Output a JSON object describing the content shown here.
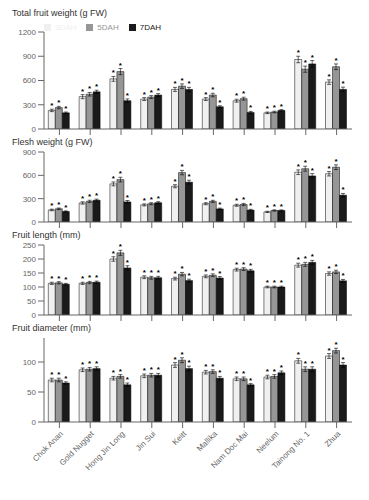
{
  "chart_data": [
    {
      "type": "bar",
      "ylabel": "Total fruit weight (g FW)",
      "categories": [
        "Chok Anan",
        "Gold Nugget",
        "Hong Jin Long",
        "Jin Sui",
        "Keitt",
        "Mallika",
        "Nam Doc Mai",
        "Neelum",
        "Tainong No. 1",
        "Zhua"
      ],
      "series": [
        {
          "name": "3DAH",
          "color": "#f0f0f0",
          "values": [
            230,
            400,
            620,
            370,
            490,
            370,
            350,
            200,
            860,
            580
          ],
          "errors": [
            15,
            25,
            30,
            18,
            25,
            18,
            18,
            10,
            40,
            28
          ],
          "annotations": [
            "*",
            "*",
            "*",
            "*",
            "*",
            "*",
            "*",
            "*",
            "*",
            "*"
          ]
        },
        {
          "name": "5DAH",
          "color": "#969696",
          "values": [
            265,
            430,
            710,
            395,
            530,
            420,
            375,
            210,
            740,
            770
          ],
          "errors": [
            15,
            22,
            38,
            18,
            28,
            22,
            18,
            10,
            38,
            35
          ],
          "annotations": [
            "*",
            "*",
            "*",
            "*",
            "*",
            "*",
            "*",
            "*",
            "*",
            "*"
          ]
        },
        {
          "name": "7DAH",
          "color": "#1a1a1a",
          "values": [
            200,
            460,
            350,
            420,
            490,
            275,
            205,
            230,
            805,
            490
          ],
          "errors": [
            10,
            20,
            22,
            18,
            25,
            13,
            13,
            10,
            42,
            28
          ],
          "annotations": [
            "*",
            "*",
            "*",
            "*",
            "*",
            "*",
            "*",
            "*",
            "*",
            "*"
          ]
        }
      ],
      "ylim": [
        0,
        1200
      ],
      "yticks": [
        0,
        300,
        600,
        900,
        1200
      ],
      "legend": "upper left",
      "tick_labels": "y"
    },
    {
      "type": "bar",
      "ylabel": "Flesh weight (g FW)",
      "categories": [
        "Chok Anan",
        "Gold Nugget",
        "Hong Jin Long",
        "Jin Sui",
        "Keitt",
        "Mallika",
        "Nam Doc Mai",
        "Neelum",
        "Tainong No. 1",
        "Zhua"
      ],
      "series": [
        {
          "name": "3DAH",
          "color": "#f0f0f0",
          "values": [
            155,
            245,
            490,
            220,
            460,
            235,
            215,
            130,
            640,
            620
          ],
          "errors": [
            10,
            15,
            25,
            13,
            20,
            13,
            13,
            8,
            30,
            28
          ],
          "annotations": [
            "*",
            "*",
            "*",
            "*",
            "*",
            "*",
            "*",
            "*",
            "*",
            "*"
          ]
        },
        {
          "name": "5DAH",
          "color": "#969696",
          "values": [
            170,
            265,
            545,
            235,
            635,
            265,
            225,
            148,
            685,
            705
          ],
          "errors": [
            10,
            15,
            30,
            13,
            28,
            14,
            14,
            8,
            32,
            30
          ],
          "annotations": [
            "*",
            "*",
            "*",
            "*",
            "*",
            "*",
            "*",
            "*",
            "*",
            "*"
          ]
        },
        {
          "name": "7DAH",
          "color": "#1a1a1a",
          "values": [
            135,
            280,
            258,
            248,
            512,
            168,
            153,
            148,
            592,
            345
          ],
          "errors": [
            8,
            14,
            18,
            13,
            25,
            10,
            10,
            8,
            30,
            22
          ],
          "annotations": [
            "*",
            "*",
            "*",
            "*",
            "*",
            "*",
            "*",
            "*",
            "*",
            "*"
          ]
        }
      ],
      "ylim": [
        0,
        900
      ],
      "yticks": [
        0,
        300,
        600,
        900
      ],
      "tick_labels": "y"
    },
    {
      "type": "bar",
      "ylabel": "Fruit length (mm)",
      "categories": [
        "Chok Anan",
        "Gold Nugget",
        "Hong Jin Long",
        "Jin Sui",
        "Keitt",
        "Mallika",
        "Nam Doc Mai",
        "Neelum",
        "Tainong No. 1",
        "Zhua"
      ],
      "series": [
        {
          "name": "3DAH",
          "color": "#f0f0f0",
          "values": [
            113,
            113,
            200,
            135,
            130,
            138,
            162,
            100,
            178,
            148
          ],
          "errors": [
            4,
            4,
            8,
            5,
            5,
            5,
            5,
            3,
            7,
            6
          ],
          "annotations": [
            "*",
            "*",
            "*",
            "*",
            "*",
            "*",
            "*",
            "*",
            "*",
            "*"
          ]
        },
        {
          "name": "5DAH",
          "color": "#969696",
          "values": [
            115,
            116,
            222,
            133,
            146,
            142,
            164,
            100,
            181,
            154
          ],
          "errors": [
            4,
            4,
            9,
            5,
            6,
            5,
            5,
            3,
            7,
            6
          ],
          "annotations": [
            "*",
            "*",
            "*",
            "*",
            "*",
            "*",
            "*",
            "*",
            "*",
            "*"
          ]
        },
        {
          "name": "7DAH",
          "color": "#1a1a1a",
          "values": [
            110,
            117,
            168,
            133,
            123,
            132,
            158,
            100,
            188,
            122
          ],
          "errors": [
            3,
            4,
            8,
            5,
            5,
            5,
            5,
            3,
            7,
            5
          ],
          "annotations": [
            "*",
            "*",
            "*",
            "*",
            "*",
            "*",
            "*",
            "*",
            "*",
            "*"
          ]
        }
      ],
      "ylim": [
        0,
        250
      ],
      "yticks": [
        0,
        50,
        100,
        150,
        200,
        250
      ],
      "tick_labels": "y"
    },
    {
      "type": "bar",
      "ylabel": "Fruit diameter (mm)",
      "categories": [
        "Chok Anan",
        "Gold Nugget",
        "Hong Jin Long",
        "Jin Sui",
        "Keitt",
        "Mallika",
        "Nam Doc Mai",
        "Neelum",
        "Tainong No. 1",
        "Zhua"
      ],
      "series": [
        {
          "name": "3DAH",
          "color": "#f0f0f0",
          "values": [
            70,
            87,
            73,
            77,
            95,
            83,
            72,
            75,
            102,
            110
          ],
          "errors": [
            3,
            3,
            3,
            3,
            4,
            3,
            3,
            3,
            4,
            4
          ],
          "annotations": [
            "*",
            "*",
            "*",
            "*",
            "*",
            "*",
            "*",
            "*",
            "*",
            "*"
          ]
        },
        {
          "name": "5DAH",
          "color": "#969696",
          "values": [
            70,
            88,
            76,
            78,
            103,
            84,
            72,
            76,
            88,
            119
          ],
          "errors": [
            3,
            3,
            3,
            3,
            4,
            3,
            3,
            3,
            4,
            4
          ],
          "annotations": [
            "*",
            "*",
            "*",
            "*",
            "*",
            "*",
            "*",
            "*",
            "*",
            "*"
          ]
        },
        {
          "name": "7DAH",
          "color": "#1a1a1a",
          "values": [
            65,
            89,
            62,
            78,
            89,
            73,
            62,
            82,
            88,
            95
          ],
          "errors": [
            2,
            3,
            3,
            3,
            4,
            3,
            2,
            3,
            4,
            4
          ],
          "annotations": [
            "*",
            "*",
            "*",
            "*",
            "*",
            "*",
            "*",
            "*",
            "*",
            "*"
          ]
        }
      ],
      "ylim": [
        0,
        140
      ],
      "yticks": [
        0,
        50,
        100
      ]
    }
  ]
}
